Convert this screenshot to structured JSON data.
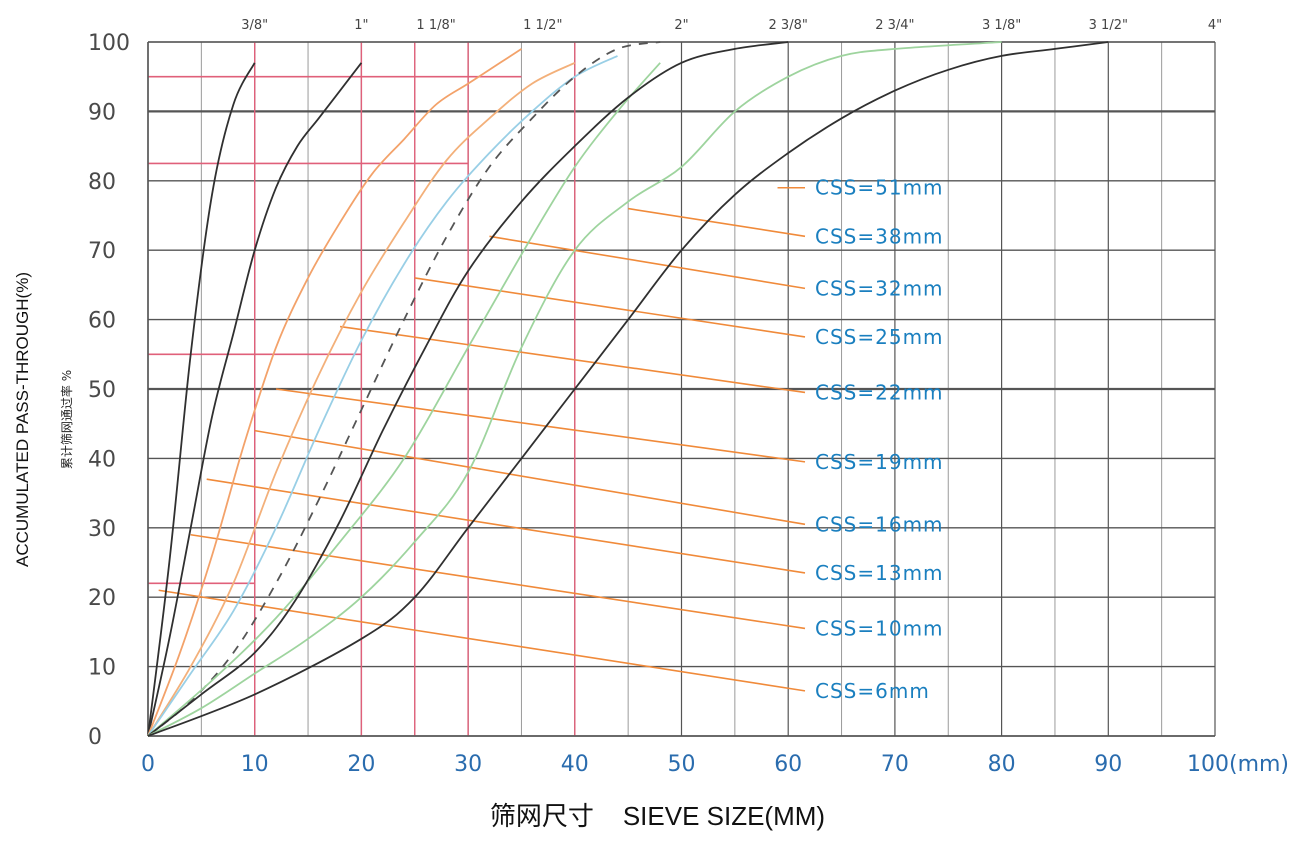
{
  "chart_data": {
    "type": "line",
    "title": "",
    "xlabel": "筛网尺寸    SIEVE SIZE(MM)",
    "ylabel": "ACCUMULATED PASS-THROUGH(%)",
    "ylabel_cn": "累计筛网通过率 %",
    "x_ticks": [
      "0",
      "10",
      "20",
      "30",
      "40",
      "50",
      "60",
      "70",
      "80",
      "90",
      "100(mm)"
    ],
    "x_tick_values": [
      0,
      10,
      20,
      30,
      40,
      50,
      60,
      70,
      80,
      90,
      100
    ],
    "y_ticks": [
      "0",
      "10",
      "20",
      "30",
      "40",
      "50",
      "60",
      "70",
      "80",
      "90",
      "100"
    ],
    "y_tick_values": [
      0,
      10,
      20,
      30,
      40,
      50,
      60,
      70,
      80,
      90,
      100
    ],
    "top_ticks": [
      {
        "label": "3/8\"",
        "x": 10
      },
      {
        "label": "1\"",
        "x": 20
      },
      {
        "label": "1 1/8\"",
        "x": 27
      },
      {
        "label": "1 1/2\"",
        "x": 37
      },
      {
        "label": "2\"",
        "x": 50
      },
      {
        "label": "2 3/8\"",
        "x": 60
      },
      {
        "label": "2 3/4\"",
        "x": 70
      },
      {
        "label": "3 1/8\"",
        "x": 80
      },
      {
        "label": "3 1/2\"",
        "x": 90
      },
      {
        "label": "4\"",
        "x": 100
      }
    ],
    "xlim": [
      0,
      100
    ],
    "ylim": [
      0,
      100
    ],
    "grid": true,
    "colors": {
      "grid_major": "#555555",
      "grid_minor": "#9a9a9a",
      "red_grid": "#e0607a",
      "leader": "#f08a3a",
      "css_label": "#1a7fbf"
    },
    "series": [
      {
        "name": "CSS=6mm",
        "color": "#303030",
        "dash": false,
        "x": [
          0,
          2,
          4,
          6,
          8,
          10
        ],
        "y": [
          0,
          25,
          55,
          78,
          91,
          97
        ]
      },
      {
        "name": "CSS=10mm",
        "color": "#303030",
        "dash": false,
        "x": [
          0,
          2,
          4,
          6,
          8,
          10,
          12,
          14,
          16,
          18,
          20
        ],
        "y": [
          0,
          14,
          30,
          46,
          58,
          70,
          79,
          85,
          89,
          93,
          97
        ]
      },
      {
        "name": "CSS=13mm",
        "color": "#f3a26a",
        "dash": false,
        "x": [
          0,
          3,
          6,
          9,
          12,
          15,
          18,
          21,
          24,
          27,
          30,
          33,
          35
        ],
        "y": [
          0,
          12,
          26,
          42,
          56,
          66,
          74,
          81,
          86,
          91,
          94,
          97,
          99
        ]
      },
      {
        "name": "CSS=16mm",
        "color": "#f3b07a",
        "dash": false,
        "x": [
          0,
          4,
          8,
          12,
          16,
          20,
          24,
          28,
          32,
          36,
          40
        ],
        "y": [
          0,
          10,
          22,
          38,
          52,
          64,
          74,
          83,
          89,
          94,
          97
        ]
      },
      {
        "name": "CSS=19mm",
        "color": "#99cfe6",
        "dash": false,
        "x": [
          0,
          4,
          8,
          12,
          16,
          20,
          24,
          28,
          32,
          36,
          40,
          44
        ],
        "y": [
          0,
          9,
          18,
          30,
          44,
          57,
          68,
          77,
          84,
          90,
          95,
          98
        ]
      },
      {
        "name": "CSS=22mm",
        "color": "#555555",
        "dash": true,
        "x": [
          0,
          4,
          8,
          12,
          16,
          20,
          24,
          28,
          32,
          36,
          40,
          44,
          48
        ],
        "y": [
          0,
          5,
          12,
          22,
          34,
          47,
          60,
          72,
          82,
          89,
          95,
          99,
          100
        ]
      },
      {
        "name": "CSS=25mm",
        "color": "#9ed49e",
        "dash": false,
        "x": [
          0,
          6,
          12,
          18,
          24,
          30,
          36,
          40,
          44,
          48
        ],
        "y": [
          0,
          8,
          17,
          28,
          40,
          56,
          72,
          82,
          90,
          97
        ]
      },
      {
        "name": "CSS=32mm",
        "color": "#303030",
        "dash": false,
        "x": [
          0,
          5,
          10,
          14,
          18,
          22,
          26,
          30,
          35,
          40,
          45,
          50,
          55,
          60
        ],
        "y": [
          0,
          6,
          12,
          20,
          31,
          44,
          56,
          67,
          77,
          85,
          92,
          97,
          99,
          100
        ]
      },
      {
        "name": "CSS=38mm",
        "color": "#9ed49e",
        "dash": false,
        "x": [
          0,
          5,
          10,
          15,
          20,
          25,
          30,
          35,
          40,
          45,
          50,
          55,
          60,
          65,
          70,
          80
        ],
        "y": [
          0,
          4,
          9,
          14,
          20,
          28,
          38,
          56,
          70,
          77,
          82,
          90,
          95,
          98,
          99,
          100
        ]
      },
      {
        "name": "CSS=51mm",
        "color": "#303030",
        "dash": false,
        "x": [
          0,
          10,
          20,
          25,
          30,
          35,
          40,
          45,
          50,
          55,
          60,
          65,
          70,
          75,
          80,
          85,
          90
        ],
        "y": [
          0,
          6,
          14,
          20,
          30,
          40,
          50,
          60,
          70,
          78,
          84,
          89,
          93,
          96,
          98,
          99,
          100
        ]
      }
    ],
    "annotations": [
      {
        "text": "CSS=51mm",
        "y": 79,
        "from": [
          59,
          79
        ]
      },
      {
        "text": "CSS=38mm",
        "y": 72,
        "from": [
          45,
          76
        ]
      },
      {
        "text": "CSS=32mm",
        "y": 64.5,
        "from": [
          32,
          72
        ]
      },
      {
        "text": "CSS=25mm",
        "y": 57.5,
        "from": [
          25,
          66
        ]
      },
      {
        "text": "CSS=22mm",
        "y": 49.5,
        "from": [
          18,
          59
        ]
      },
      {
        "text": "CSS=19mm",
        "y": 39.5,
        "from": [
          12,
          50
        ]
      },
      {
        "text": "CSS=16mm",
        "y": 30.5,
        "from": [
          10,
          44
        ]
      },
      {
        "text": "CSS=13mm",
        "y": 23.5,
        "from": [
          5.5,
          37
        ]
      },
      {
        "text": "CSS=10mm",
        "y": 15.5,
        "from": [
          4,
          29
        ]
      },
      {
        "text": "CSS=6mm",
        "y": 6.5,
        "from": [
          1,
          21
        ]
      }
    ],
    "reference_lines": [
      {
        "y": 95,
        "x_to": 35
      },
      {
        "y": 82.5,
        "x_to": 30
      },
      {
        "y": 55,
        "x_to": 20
      },
      {
        "y": 22,
        "x_to": 10
      }
    ],
    "red_verticals": [
      10,
      20,
      25,
      30,
      40
    ]
  }
}
